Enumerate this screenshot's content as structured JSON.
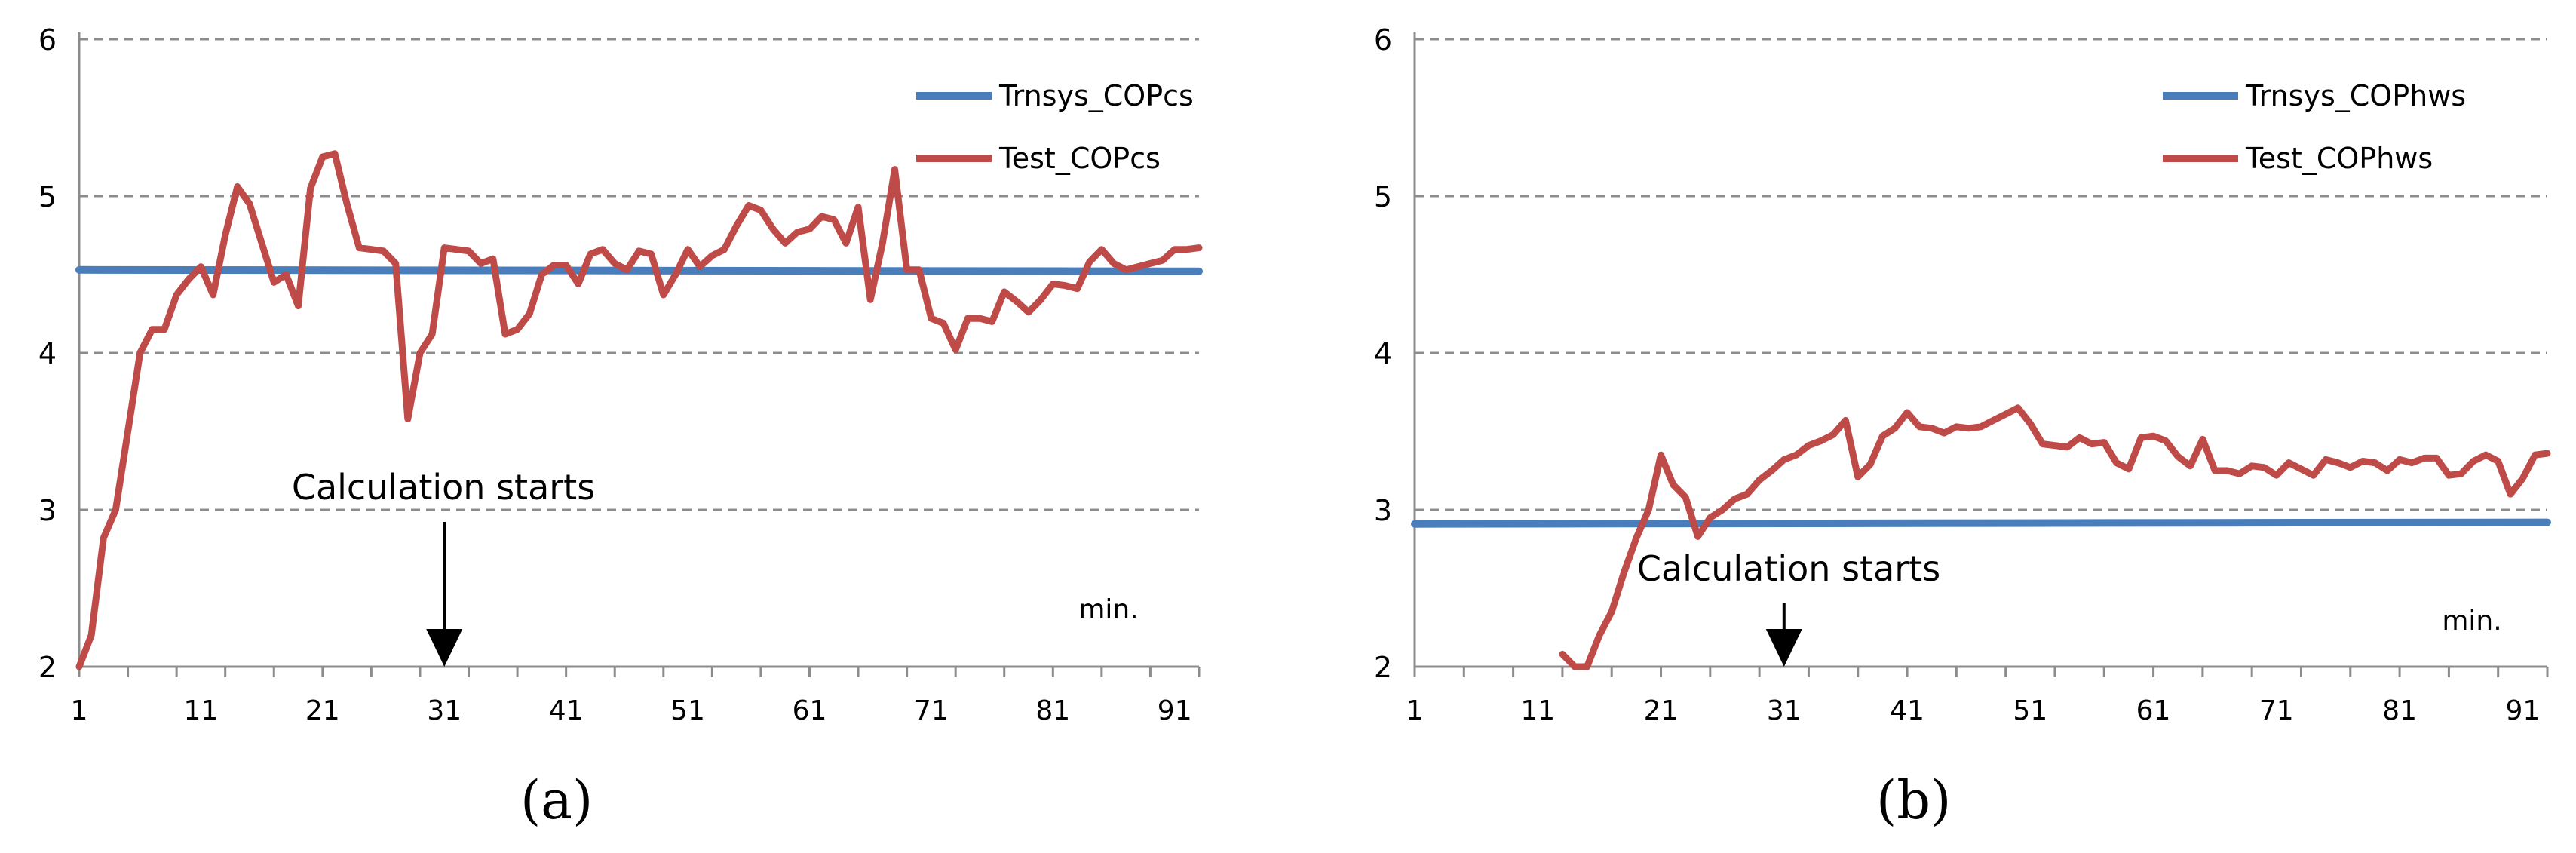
{
  "chart_data": [
    {
      "type": "line",
      "panel_label": "(a)",
      "ylim": [
        2,
        6
      ],
      "yticks": [
        "2",
        "3",
        "4",
        "5",
        "6"
      ],
      "xlim": [
        1,
        93
      ],
      "xticks": [
        "1",
        "11",
        "21",
        "31",
        "41",
        "51",
        "61",
        "71",
        "81",
        "91"
      ],
      "x_unit_label": "min.",
      "annotation": {
        "text": "Calculation starts",
        "x": 31
      },
      "legend": [
        "Trnsys_COPcs",
        "Test_COPcs"
      ],
      "series": [
        {
          "name": "Trnsys_COPcs",
          "color": "#4A7EBB",
          "x": [
            1,
            93
          ],
          "values": [
            4.53,
            4.52
          ]
        },
        {
          "name": "Test_COPcs",
          "color": "#BE4B48",
          "x": [
            1,
            2,
            3,
            4,
            5,
            6,
            7,
            8,
            9,
            10,
            11,
            12,
            13,
            14,
            15,
            16,
            17,
            18,
            19,
            20,
            21,
            22,
            23,
            24,
            25,
            26,
            27,
            28,
            29,
            30,
            31,
            32,
            33,
            34,
            35,
            36,
            37,
            38,
            39,
            40,
            41,
            42,
            43,
            44,
            45,
            46,
            47,
            48,
            49,
            50,
            51,
            52,
            53,
            54,
            55,
            56,
            57,
            58,
            59,
            60,
            61,
            62,
            63,
            64,
            65,
            66,
            67,
            68,
            69,
            70,
            71,
            72,
            73,
            74,
            75,
            76,
            77,
            78,
            79,
            80,
            81,
            82,
            83,
            84,
            85,
            86,
            87,
            88,
            89,
            90,
            91,
            92,
            93
          ],
          "values": [
            2.0,
            2.2,
            2.82,
            3.0,
            3.5,
            4.0,
            4.15,
            4.15,
            4.37,
            4.47,
            4.55,
            4.37,
            4.75,
            5.06,
            4.95,
            4.7,
            4.45,
            4.5,
            4.3,
            5.05,
            5.25,
            5.27,
            4.95,
            4.67,
            4.66,
            4.65,
            4.57,
            3.58,
            4.0,
            4.12,
            4.67,
            4.66,
            4.65,
            4.57,
            4.6,
            4.12,
            4.15,
            4.25,
            4.5,
            4.56,
            4.56,
            4.44,
            4.63,
            4.66,
            4.57,
            4.53,
            4.65,
            4.63,
            4.37,
            4.5,
            4.66,
            4.55,
            4.62,
            4.66,
            4.81,
            4.94,
            4.91,
            4.79,
            4.7,
            4.77,
            4.79,
            4.87,
            4.85,
            4.7,
            4.93,
            4.34,
            4.7,
            5.17,
            4.53,
            4.53,
            4.22,
            4.19,
            4.02,
            4.22,
            4.22,
            4.2,
            4.39,
            4.33,
            4.26,
            4.34,
            4.44,
            4.43,
            4.41,
            4.58,
            4.66,
            4.57,
            4.53,
            4.55,
            4.57,
            4.59,
            4.66,
            4.66,
            4.67
          ]
        }
      ]
    },
    {
      "type": "line",
      "panel_label": "(b)",
      "ylim": [
        2,
        6
      ],
      "yticks": [
        "2",
        "3",
        "4",
        "5",
        "6"
      ],
      "xlim": [
        1,
        93
      ],
      "xticks": [
        "1",
        "11",
        "21",
        "31",
        "41",
        "51",
        "61",
        "71",
        "81",
        "91"
      ],
      "x_unit_label": "min.",
      "annotation": {
        "text": "Calculation starts",
        "x": 31
      },
      "legend": [
        "Trnsys_COPhws",
        "Test_COPhws"
      ],
      "series": [
        {
          "name": "Trnsys_COPhws",
          "color": "#4A7EBB",
          "x": [
            1,
            93
          ],
          "values": [
            2.91,
            2.92
          ]
        },
        {
          "name": "Test_COPhws",
          "color": "#BE4B48",
          "x": [
            13,
            14,
            15,
            16,
            17,
            18,
            19,
            20,
            21,
            22,
            23,
            24,
            25,
            26,
            27,
            28,
            29,
            30,
            31,
            32,
            33,
            34,
            35,
            36,
            37,
            38,
            39,
            40,
            41,
            42,
            43,
            44,
            45,
            46,
            47,
            48,
            49,
            50,
            51,
            52,
            53,
            54,
            55,
            56,
            57,
            58,
            59,
            60,
            61,
            62,
            63,
            64,
            65,
            66,
            67,
            68,
            69,
            70,
            71,
            72,
            73,
            74,
            75,
            76,
            77,
            78,
            79,
            80,
            81,
            82,
            83,
            84,
            85,
            86,
            87,
            88,
            89,
            90,
            91,
            92,
            93
          ],
          "values": [
            2.08,
            2.0,
            2.0,
            2.2,
            2.35,
            2.6,
            2.82,
            3.0,
            3.35,
            3.16,
            3.08,
            2.83,
            2.95,
            3.0,
            3.07,
            3.1,
            3.19,
            3.25,
            3.32,
            3.35,
            3.41,
            3.44,
            3.48,
            3.57,
            3.21,
            3.29,
            3.47,
            3.52,
            3.62,
            3.53,
            3.52,
            3.49,
            3.53,
            3.52,
            3.53,
            3.57,
            3.61,
            3.65,
            3.55,
            3.42,
            3.41,
            3.4,
            3.46,
            3.42,
            3.43,
            3.3,
            3.26,
            3.46,
            3.47,
            3.44,
            3.34,
            3.28,
            3.45,
            3.25,
            3.25,
            3.23,
            3.28,
            3.27,
            3.22,
            3.3,
            3.26,
            3.22,
            3.32,
            3.3,
            3.27,
            3.31,
            3.3,
            3.25,
            3.32,
            3.3,
            3.33,
            3.33,
            3.22,
            3.23,
            3.31,
            3.35,
            3.31,
            3.1,
            3.2,
            3.35,
            3.36
          ]
        }
      ]
    }
  ]
}
